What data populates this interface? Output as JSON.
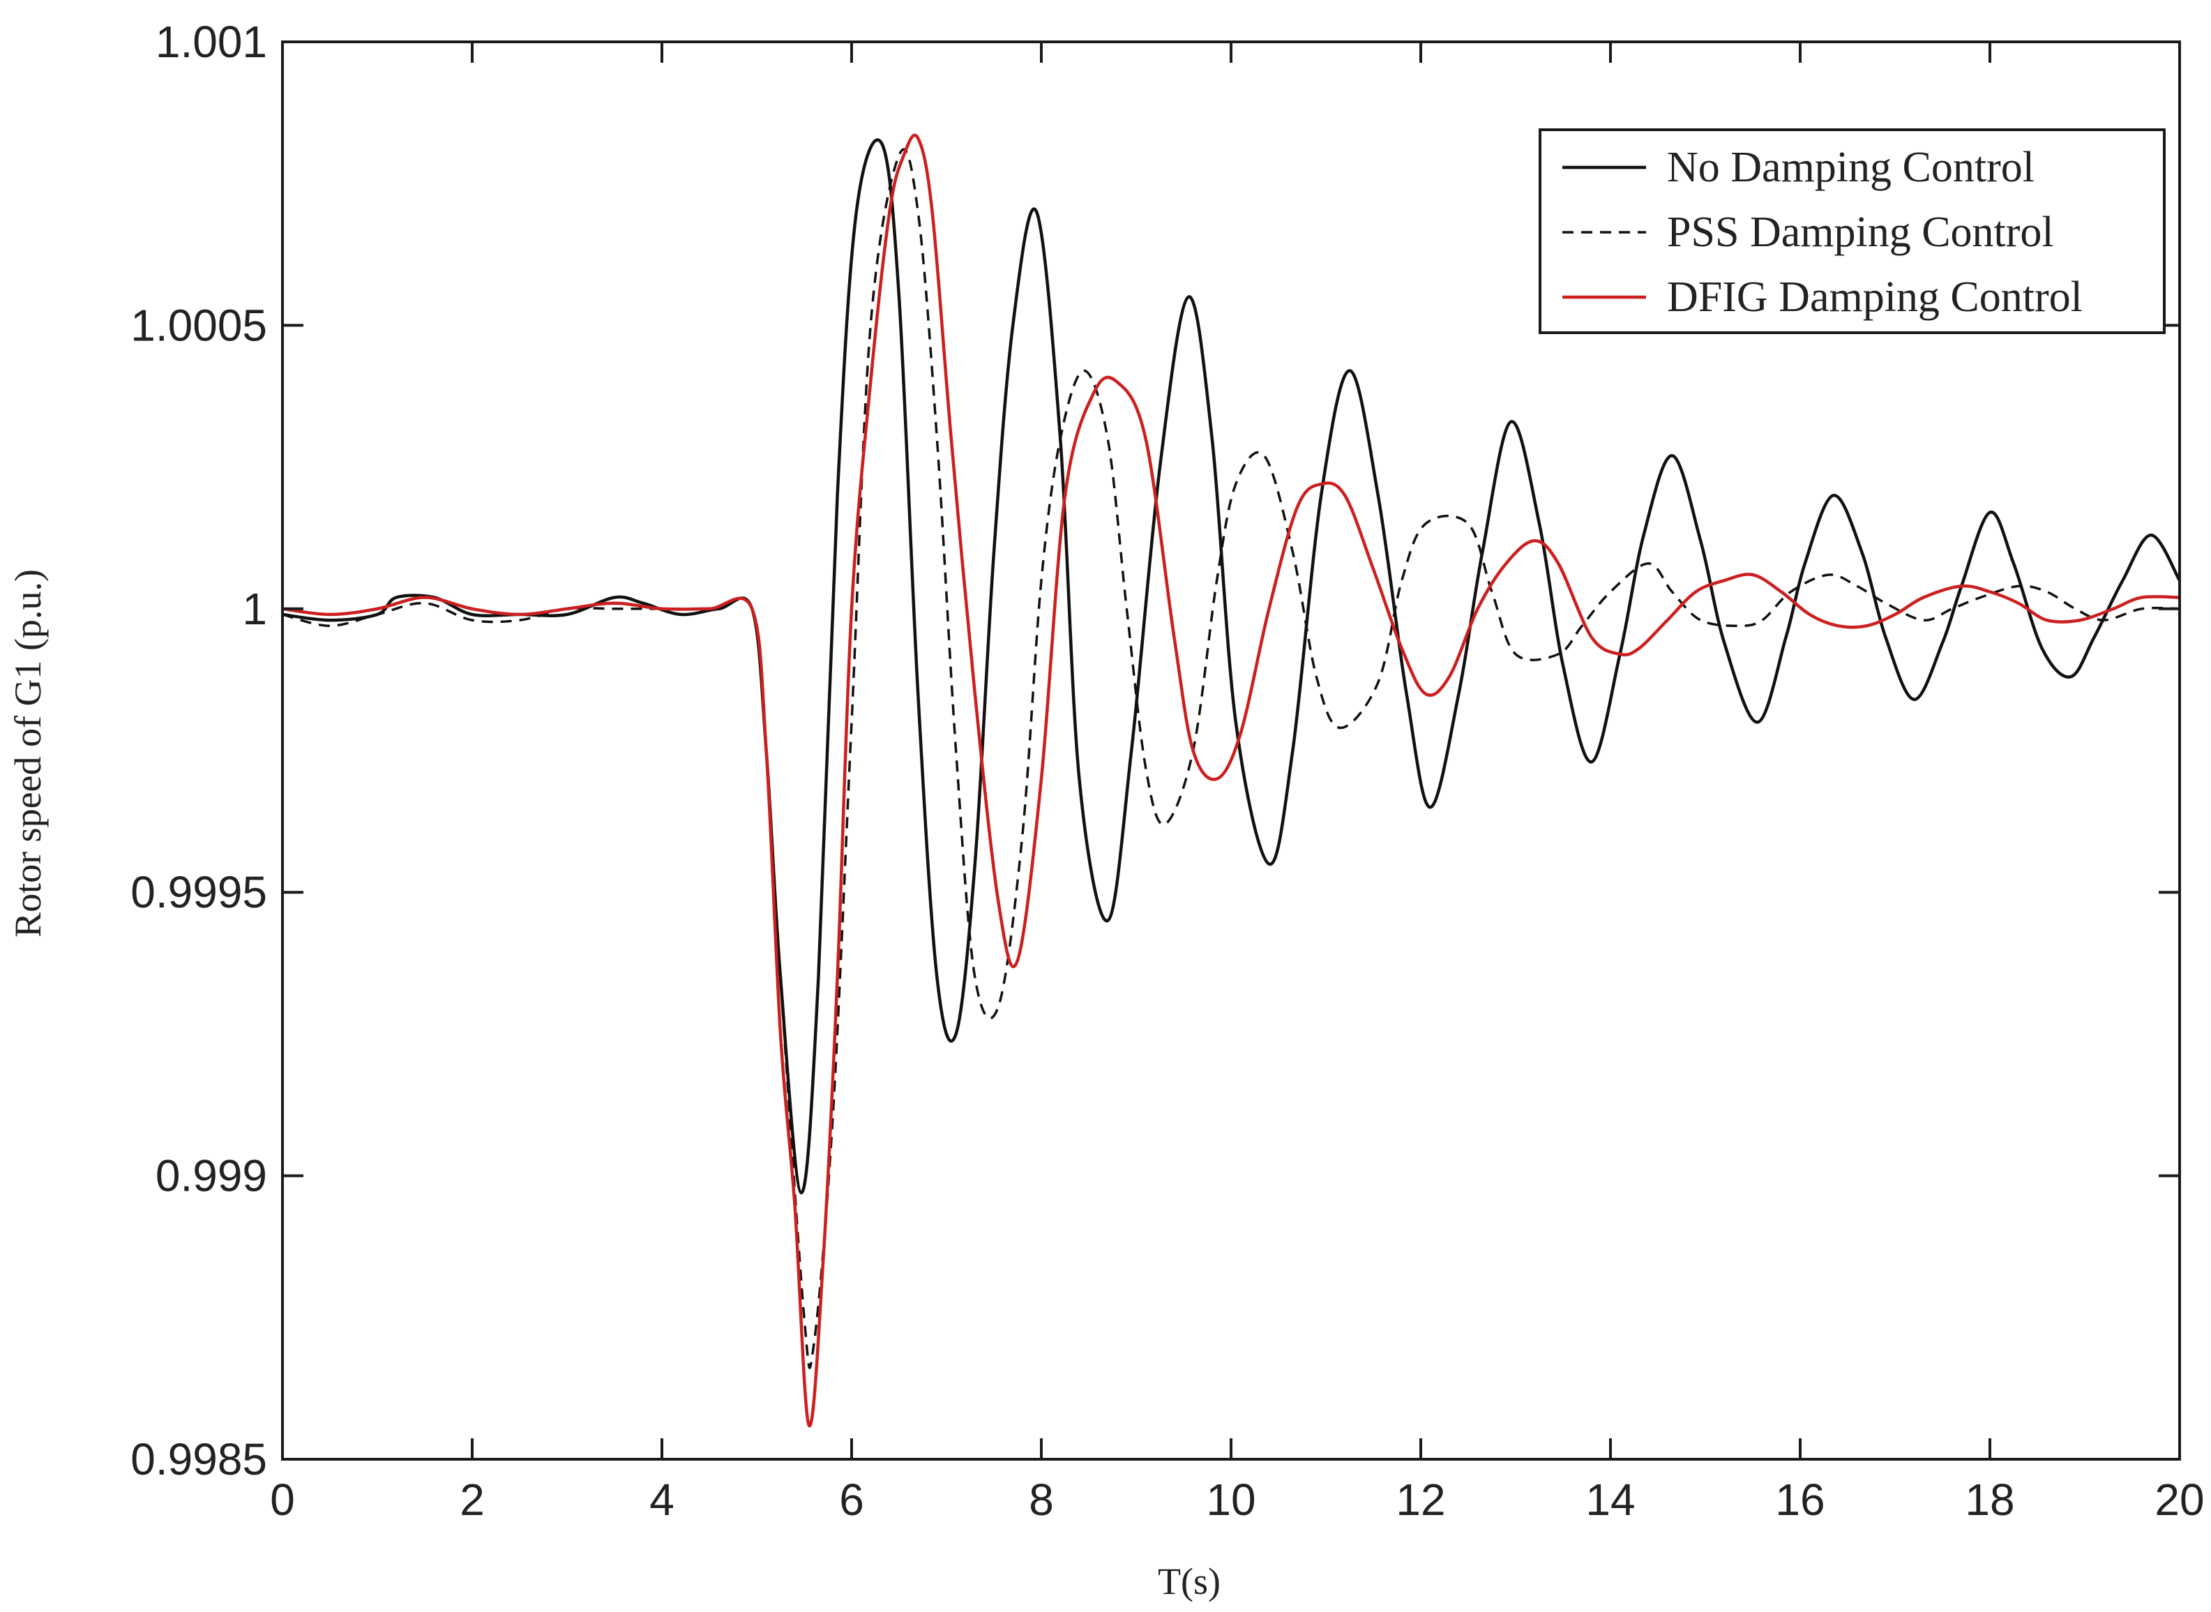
{
  "chart_data": {
    "type": "line",
    "title": "",
    "xlabel": "T(s)",
    "ylabel": "Rotor speed of G1 (p.u.)",
    "xlim": [
      0,
      20
    ],
    "ylim": [
      0.9985,
      1.001
    ],
    "x_ticks": [
      0,
      2,
      4,
      6,
      8,
      10,
      12,
      14,
      16,
      18,
      20
    ],
    "x_tick_labels": [
      "0",
      "2",
      "4",
      "6",
      "8",
      "10",
      "12",
      "14",
      "16",
      "18",
      "20"
    ],
    "y_ticks": [
      0.9985,
      0.999,
      0.9995,
      1,
      1.0005,
      1.001
    ],
    "y_tick_labels": [
      "0.9985",
      "0.999",
      "0.9995",
      "1",
      "1.0005",
      "1.001"
    ],
    "grid": false,
    "legend_position": "top-right",
    "series": [
      {
        "name": "No Damping Control",
        "color": "#111111",
        "dash": "solid",
        "x": [
          0,
          0.5,
          1.0,
          1.2,
          1.6,
          2.0,
          2.5,
          3.0,
          3.5,
          3.8,
          4.2,
          4.6,
          4.95,
          5.1,
          5.25,
          5.47,
          5.65,
          5.85,
          6.05,
          6.32,
          6.5,
          6.7,
          6.9,
          7.1,
          7.3,
          7.5,
          7.7,
          7.95,
          8.2,
          8.4,
          8.7,
          8.95,
          9.25,
          9.55,
          9.8,
          10.05,
          10.4,
          10.65,
          10.95,
          11.25,
          11.55,
          11.85,
          12.1,
          12.4,
          12.65,
          12.95,
          13.25,
          13.5,
          13.8,
          14.1,
          14.35,
          14.65,
          14.95,
          15.2,
          15.55,
          15.85,
          16.05,
          16.35,
          16.65,
          16.9,
          17.2,
          17.5,
          17.7,
          18.0,
          18.25,
          18.55,
          18.85,
          19.1,
          19.4,
          19.7,
          20.0
        ],
        "y": [
          0.99999,
          0.99998,
          0.99999,
          1.00002,
          1.00002,
          0.99999,
          0.99999,
          0.99999,
          1.00002,
          1.00001,
          0.99999,
          1.0,
          1.0,
          0.99975,
          0.99935,
          0.99897,
          0.99935,
          1.0002,
          1.0007,
          1.00082,
          1.00055,
          0.99985,
          0.99935,
          0.99925,
          0.99955,
          1.0001,
          1.0005,
          1.0007,
          1.0003,
          0.9997,
          0.99945,
          0.99975,
          1.00025,
          1.00055,
          1.0003,
          0.9998,
          0.99955,
          0.99975,
          1.0002,
          1.00042,
          1.0002,
          0.99985,
          0.99965,
          0.99985,
          1.0001,
          1.00033,
          1.00015,
          0.9999,
          0.99973,
          0.99992,
          1.00013,
          1.00027,
          1.00012,
          0.99994,
          0.9998,
          0.99995,
          1.00008,
          1.0002,
          1.0001,
          0.99995,
          0.99984,
          0.99994,
          1.00004,
          1.00017,
          1.00008,
          0.99993,
          0.99988,
          0.99995,
          1.00005,
          1.00013,
          1.00005
        ]
      },
      {
        "name": "PSS Damping Control",
        "color": "#111111",
        "dash": "dashed",
        "x": [
          0,
          0.5,
          1.0,
          1.5,
          2.0,
          2.5,
          3.0,
          3.5,
          4.0,
          4.5,
          4.95,
          5.1,
          5.25,
          5.5,
          5.6,
          5.8,
          6.0,
          6.2,
          6.5,
          6.7,
          6.9,
          7.1,
          7.3,
          7.55,
          7.8,
          8.0,
          8.2,
          8.45,
          8.7,
          8.9,
          9.1,
          9.3,
          9.6,
          9.85,
          10.05,
          10.35,
          10.65,
          10.9,
          11.15,
          11.55,
          11.8,
          12.05,
          12.5,
          12.75,
          13.0,
          13.45,
          13.7,
          14.0,
          14.4,
          14.65,
          14.95,
          15.35,
          15.6,
          15.9,
          16.3,
          16.6,
          16.9,
          17.3,
          17.6,
          17.9,
          18.3,
          18.6,
          18.9,
          19.2,
          19.6,
          20.0
        ],
        "y": [
          0.99999,
          0.99997,
          0.99999,
          1.00001,
          0.99998,
          0.99998,
          1.0,
          1.0,
          1.0,
          1.0,
          1.0,
          0.99975,
          0.99935,
          0.99875,
          0.9987,
          0.9991,
          0.9998,
          1.0005,
          1.0008,
          1.0007,
          1.0003,
          0.99975,
          0.99935,
          0.9993,
          0.9996,
          1.00005,
          1.0003,
          1.00042,
          1.0003,
          1.0,
          0.99972,
          0.99962,
          0.99975,
          1.00005,
          1.00022,
          1.00027,
          1.0001,
          0.99988,
          0.99979,
          0.99987,
          1.00005,
          1.00015,
          1.00015,
          1.00003,
          0.99992,
          0.99992,
          0.99997,
          1.00003,
          1.00008,
          1.00003,
          0.99998,
          0.99997,
          0.99998,
          1.00003,
          1.00006,
          1.00004,
          1.00001,
          0.99998,
          1.0,
          1.00002,
          1.00004,
          1.00003,
          1.0,
          0.99998,
          1.0,
          1.0
        ]
      },
      {
        "name": "DFIG Damping Control",
        "color": "#cc1f1f",
        "dash": "solid",
        "x": [
          0,
          0.5,
          1.0,
          1.5,
          2.0,
          2.5,
          3.0,
          3.5,
          4.0,
          4.5,
          4.95,
          5.1,
          5.25,
          5.4,
          5.55,
          5.7,
          5.85,
          6.0,
          6.2,
          6.4,
          6.55,
          6.7,
          6.85,
          7.05,
          7.3,
          7.55,
          7.75,
          8.0,
          8.25,
          8.55,
          8.8,
          9.1,
          9.4,
          9.6,
          9.85,
          10.1,
          10.4,
          10.7,
          10.95,
          11.2,
          11.5,
          11.8,
          12.05,
          12.3,
          12.6,
          12.9,
          13.2,
          13.45,
          13.8,
          14.1,
          14.3,
          14.6,
          14.9,
          15.2,
          15.5,
          15.8,
          16.1,
          16.4,
          16.7,
          17.0,
          17.3,
          17.7,
          18.0,
          18.3,
          18.6,
          18.95,
          19.3,
          19.6,
          20.0
        ],
        "y": [
          1.0,
          0.99999,
          1.0,
          1.00002,
          1.0,
          0.99999,
          1.0,
          1.00001,
          1.0,
          1.0,
          1.0,
          0.99975,
          0.99925,
          0.99895,
          0.99856,
          0.99885,
          0.99935,
          1.0,
          1.0004,
          1.0007,
          1.0008,
          1.00083,
          1.0007,
          1.0003,
          0.99985,
          0.99948,
          0.99938,
          0.9997,
          1.0002,
          1.00038,
          1.0004,
          1.0003,
          0.99995,
          0.99975,
          0.9997,
          0.99978,
          1.0,
          1.00018,
          1.00022,
          1.0002,
          1.00007,
          0.99993,
          0.99985,
          0.99988,
          1.0,
          1.00008,
          1.00012,
          1.00008,
          0.99995,
          0.99992,
          0.99993,
          0.99998,
          1.00003,
          1.00005,
          1.00006,
          1.00003,
          0.99999,
          0.99997,
          0.99997,
          0.99999,
          1.00002,
          1.00004,
          1.00003,
          1.00001,
          0.99998,
          0.99998,
          1.0,
          1.00002,
          1.00002
        ]
      }
    ]
  }
}
